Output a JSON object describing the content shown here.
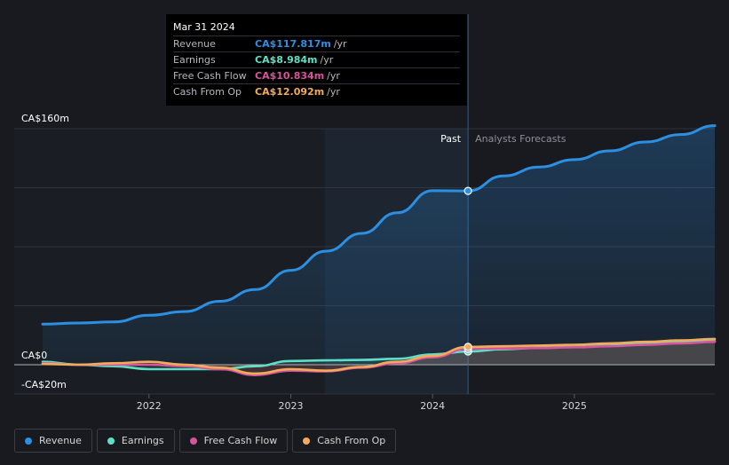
{
  "chart_data": {
    "type": "line",
    "x_axis": {
      "ticks": [
        "2022",
        "2023",
        "2024",
        "2025"
      ],
      "range": [
        2021.25,
        2025.99
      ]
    },
    "y_axis": {
      "ticks": [
        "CA$160m",
        "CA$0",
        "-CA$20m"
      ],
      "range": [
        -20,
        160
      ]
    },
    "past_label": "Past",
    "forecast_label": "Analysts Forecasts",
    "divider_x": 2024.25,
    "highlight_start_x": 2023.24,
    "series": [
      {
        "name": "Revenue",
        "color": "#2d8fe2",
        "points": [
          [
            2021.25,
            27.5
          ],
          [
            2021.5,
            28.3
          ],
          [
            2021.75,
            29
          ],
          [
            2022,
            33.5
          ],
          [
            2022.25,
            36
          ],
          [
            2022.5,
            43
          ],
          [
            2022.75,
            51
          ],
          [
            2023,
            64
          ],
          [
            2023.25,
            77
          ],
          [
            2023.5,
            89
          ],
          [
            2023.75,
            103
          ],
          [
            2024,
            118
          ],
          [
            2024.25,
            117.8
          ],
          [
            2024.5,
            128
          ],
          [
            2024.75,
            134
          ],
          [
            2025,
            139
          ],
          [
            2025.25,
            145
          ],
          [
            2025.5,
            151
          ],
          [
            2025.75,
            156
          ],
          [
            2025.99,
            162
          ]
        ]
      },
      {
        "name": "Earnings",
        "color": "#5ee0c8",
        "points": [
          [
            2021.25,
            2
          ],
          [
            2021.5,
            0
          ],
          [
            2021.75,
            -1
          ],
          [
            2022,
            -3
          ],
          [
            2022.25,
            -3
          ],
          [
            2022.5,
            -3
          ],
          [
            2022.75,
            -1
          ],
          [
            2023,
            2.5
          ],
          [
            2023.25,
            3
          ],
          [
            2023.5,
            3.3
          ],
          [
            2023.75,
            4
          ],
          [
            2024,
            7
          ],
          [
            2024.25,
            8.984
          ],
          [
            2024.5,
            10.5
          ],
          [
            2024.75,
            11.5
          ],
          [
            2025,
            12
          ],
          [
            2025.25,
            13
          ],
          [
            2025.5,
            14.5
          ],
          [
            2025.75,
            15.5
          ],
          [
            2025.99,
            16
          ]
        ]
      },
      {
        "name": "Free Cash Flow",
        "color": "#d6559b",
        "points": [
          [
            2021.25,
            1
          ],
          [
            2021.5,
            0
          ],
          [
            2021.75,
            0
          ],
          [
            2022,
            0
          ],
          [
            2022.25,
            -1
          ],
          [
            2022.5,
            -3
          ],
          [
            2022.75,
            -7
          ],
          [
            2023,
            -4
          ],
          [
            2023.25,
            -4.5
          ],
          [
            2023.5,
            -2
          ],
          [
            2023.75,
            1
          ],
          [
            2024,
            5
          ],
          [
            2024.25,
            10.834
          ],
          [
            2024.5,
            11
          ],
          [
            2024.75,
            11.3
          ],
          [
            2025,
            11.8
          ],
          [
            2025.25,
            12.5
          ],
          [
            2025.5,
            13.5
          ],
          [
            2025.75,
            14.5
          ],
          [
            2025.99,
            15.5
          ]
        ]
      },
      {
        "name": "Cash From Op",
        "color": "#f2ab5b",
        "points": [
          [
            2021.25,
            0.5
          ],
          [
            2021.5,
            0
          ],
          [
            2021.75,
            1
          ],
          [
            2022,
            2
          ],
          [
            2022.25,
            0
          ],
          [
            2022.5,
            -2
          ],
          [
            2022.75,
            -6
          ],
          [
            2023,
            -3
          ],
          [
            2023.25,
            -4
          ],
          [
            2023.5,
            -1.5
          ],
          [
            2023.75,
            2
          ],
          [
            2024,
            6
          ],
          [
            2024.25,
            12.092
          ],
          [
            2024.5,
            12.5
          ],
          [
            2024.75,
            13
          ],
          [
            2025,
            13.5
          ],
          [
            2025.25,
            14.5
          ],
          [
            2025.5,
            15.5
          ],
          [
            2025.75,
            16.5
          ],
          [
            2025.99,
            17.5
          ]
        ]
      }
    ]
  },
  "tooltip": {
    "date": "Mar 31 2024",
    "rows": [
      {
        "label": "Revenue",
        "value": "CA$117.817m",
        "unit": "/yr",
        "color": "#2d8fe2"
      },
      {
        "label": "Earnings",
        "value": "CA$8.984m",
        "unit": "/yr",
        "color": "#5ee0c8"
      },
      {
        "label": "Free Cash Flow",
        "value": "CA$10.834m",
        "unit": "/yr",
        "color": "#d6559b"
      },
      {
        "label": "Cash From Op",
        "value": "CA$12.092m",
        "unit": "/yr",
        "color": "#f2ab5b"
      }
    ]
  },
  "legend": [
    {
      "label": "Revenue",
      "color": "#2d8fe2"
    },
    {
      "label": "Earnings",
      "color": "#5ee0c8"
    },
    {
      "label": "Free Cash Flow",
      "color": "#d6559b"
    },
    {
      "label": "Cash From Op",
      "color": "#f2ab5b"
    }
  ]
}
